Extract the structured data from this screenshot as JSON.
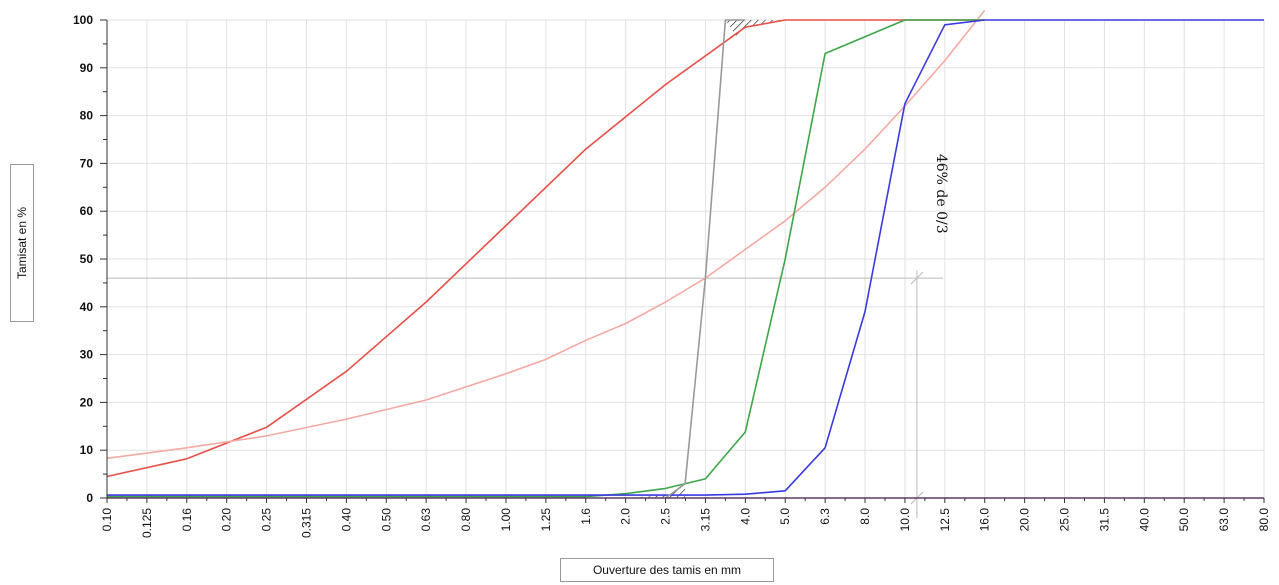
{
  "chart_data": {
    "type": "line",
    "xlabel": "Ouverture des tamis en mm",
    "ylabel": "Tamisat en %",
    "ylim": [
      0,
      100
    ],
    "y_ticks": [
      "0",
      "10",
      "20",
      "30",
      "40",
      "50",
      "60",
      "70",
      "80",
      "90",
      "100"
    ],
    "categories": [
      "0.10",
      "0.125",
      "0.16",
      "0.20",
      "0.25",
      "0.315",
      "0.40",
      "0.50",
      "0.63",
      "0.80",
      "1.00",
      "1.25",
      "1.6",
      "2.0",
      "2.5",
      "3.15",
      "4.0",
      "5.0",
      "6.3",
      "8.0",
      "10.0",
      "12.5",
      "16.0",
      "20.0",
      "25.0",
      "31.5",
      "40.0",
      "50.0",
      "63.0",
      "80.0"
    ],
    "grid": true,
    "series": [
      {
        "color": "#e8504a",
        "x": [
          "0.10",
          "0.16",
          "0.25",
          "0.40",
          "0.63",
          "1.00",
          "1.6",
          "2.5",
          "4.0",
          "5.0",
          "6.3",
          "16.0"
        ],
        "values": [
          4.5,
          8.2,
          14.8,
          26.5,
          41,
          57,
          73,
          86.5,
          98.5,
          100,
          100,
          100
        ]
      },
      {
        "color": "#f4aaa4",
        "x": [
          "0.10",
          "0.16",
          "0.25",
          "0.40",
          "0.63",
          "1.00",
          "1.25",
          "1.6",
          "2.0",
          "2.5",
          "3.15",
          "4.0",
          "5.0",
          "6.3",
          "8.0",
          "10.0",
          "12.5",
          "16.0"
        ],
        "values": [
          8.3,
          10.5,
          13,
          16.5,
          20.5,
          26,
          29,
          33,
          36.5,
          41,
          46,
          52,
          58,
          65,
          73,
          82,
          91.5,
          102
        ]
      },
      {
        "color": "#3ea64a",
        "x": [
          "0.10",
          "1.6",
          "2.0",
          "2.5",
          "3.15",
          "4.0",
          "5.0",
          "6.3",
          "10.0",
          "16.0"
        ],
        "values": [
          0.3,
          0.3,
          0.9,
          2,
          4,
          13.8,
          50,
          93,
          100,
          100
        ]
      },
      {
        "color": "#3a3ae0",
        "x": [
          "0.10",
          "3.15",
          "4.0",
          "5.0",
          "6.3",
          "8.0",
          "10.0",
          "12.5",
          "16.0",
          "80.0"
        ],
        "values": [
          0.6,
          0.6,
          0.8,
          1.5,
          10.5,
          39,
          82.5,
          99,
          100,
          100
        ]
      },
      {
        "color": "#999999",
        "x": [
          "2.5",
          "2.8",
          "3.15",
          "3.55",
          "4.0"
        ],
        "values": [
          0,
          3,
          46,
          100,
          100
        ]
      },
      {
        "color": "#b050c8",
        "x": [
          "0.10",
          "80.0"
        ],
        "values": [
          0,
          0
        ]
      }
    ],
    "annotations": [
      {
        "text": "46% de 0/3",
        "x": "10.0",
        "y": 46
      }
    ]
  }
}
